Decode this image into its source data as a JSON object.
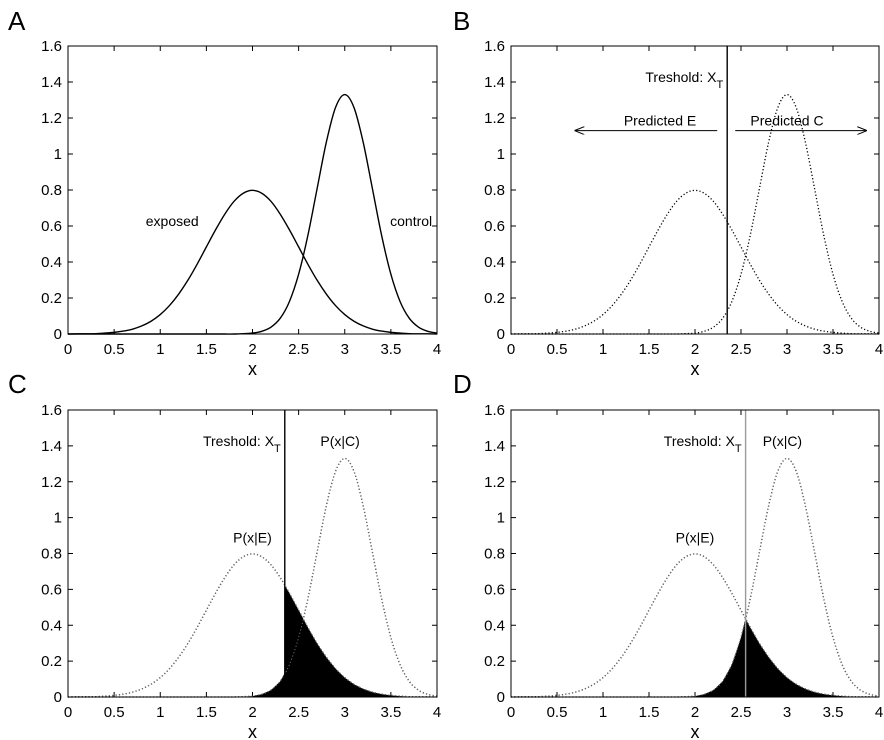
{
  "chart_data": [
    {
      "type": "line",
      "panel": "A",
      "xlabel": "x",
      "line_style": "solid",
      "x": [
        0,
        0.1,
        0.2,
        0.3,
        0.4,
        0.5,
        0.6,
        0.7,
        0.8,
        0.9,
        1,
        1.1,
        1.2,
        1.3,
        1.4,
        1.5,
        1.6,
        1.7,
        1.8,
        1.9,
        2,
        2.1,
        2.2,
        2.3,
        2.4,
        2.5,
        2.6,
        2.7,
        2.8,
        2.9,
        3,
        3.1,
        3.2,
        3.3,
        3.4,
        3.5,
        3.6,
        3.7,
        3.8,
        3.9,
        4
      ],
      "series": [
        {
          "name": "exposed",
          "color": "#000000",
          "values": [
            0,
            0.001,
            0.001,
            0.002,
            0.005,
            0.009,
            0.016,
            0.027,
            0.045,
            0.071,
            0.108,
            0.158,
            0.222,
            0.299,
            0.388,
            0.484,
            0.579,
            0.666,
            0.737,
            0.782,
            0.798,
            0.782,
            0.737,
            0.666,
            0.579,
            0.484,
            0.388,
            0.299,
            0.222,
            0.158,
            0.108,
            0.071,
            0.045,
            0.027,
            0.016,
            0.009,
            0.005,
            0.002,
            0.001,
            0.001,
            0
          ]
        },
        {
          "name": "control",
          "color": "#000000",
          "values": [
            0,
            0,
            0,
            0,
            0,
            0,
            0,
            0,
            0,
            0,
            0,
            0,
            0,
            0,
            0,
            0,
            0,
            0,
            0,
            0.002,
            0.005,
            0.015,
            0.038,
            0.087,
            0.18,
            0.332,
            0.547,
            0.807,
            1.065,
            1.258,
            1.33,
            1.258,
            1.065,
            0.807,
            0.547,
            0.332,
            0.18,
            0.087,
            0.038,
            0.015,
            0.005
          ]
        }
      ],
      "xlim": [
        0,
        4
      ],
      "ylim": [
        0,
        1.6
      ],
      "xticks": [
        0,
        0.5,
        1,
        1.5,
        2,
        2.5,
        3,
        3.5,
        4
      ],
      "yticks": [
        0,
        0.2,
        0.4,
        0.6,
        0.8,
        1,
        1.2,
        1.4,
        1.6
      ]
    },
    {
      "type": "line",
      "panel": "B",
      "xlabel": "x",
      "line_style": "dotted",
      "x": [
        0,
        0.1,
        0.2,
        0.3,
        0.4,
        0.5,
        0.6,
        0.7,
        0.8,
        0.9,
        1,
        1.1,
        1.2,
        1.3,
        1.4,
        1.5,
        1.6,
        1.7,
        1.8,
        1.9,
        2,
        2.1,
        2.2,
        2.3,
        2.4,
        2.5,
        2.6,
        2.7,
        2.8,
        2.9,
        3,
        3.1,
        3.2,
        3.3,
        3.4,
        3.5,
        3.6,
        3.7,
        3.8,
        3.9,
        4
      ],
      "series": [
        {
          "color": "#000000",
          "values": [
            0,
            0.001,
            0.001,
            0.002,
            0.005,
            0.009,
            0.016,
            0.027,
            0.045,
            0.071,
            0.108,
            0.158,
            0.222,
            0.299,
            0.388,
            0.484,
            0.579,
            0.666,
            0.737,
            0.782,
            0.798,
            0.782,
            0.737,
            0.666,
            0.579,
            0.484,
            0.388,
            0.299,
            0.222,
            0.158,
            0.108,
            0.071,
            0.045,
            0.027,
            0.016,
            0.009,
            0.005,
            0.002,
            0.001,
            0.001,
            0
          ]
        },
        {
          "color": "#000000",
          "values": [
            0,
            0,
            0,
            0,
            0,
            0,
            0,
            0,
            0,
            0,
            0,
            0,
            0,
            0,
            0,
            0,
            0,
            0,
            0,
            0.002,
            0.005,
            0.015,
            0.038,
            0.087,
            0.18,
            0.332,
            0.547,
            0.807,
            1.065,
            1.258,
            1.33,
            1.258,
            1.065,
            0.807,
            0.547,
            0.332,
            0.18,
            0.087,
            0.038,
            0.015,
            0.005
          ]
        }
      ],
      "threshold": 2.35,
      "threshold_color": "#000000",
      "threshold_label": "Treshold: X",
      "threshold_subscript": "T",
      "regions": [
        "Predicted E",
        "Predicted C"
      ],
      "xlim": [
        0,
        4
      ],
      "ylim": [
        0,
        1.6
      ],
      "xticks": [
        0,
        0.5,
        1,
        1.5,
        2,
        2.5,
        3,
        3.5,
        4
      ],
      "yticks": [
        0,
        0.2,
        0.4,
        0.6,
        0.8,
        1,
        1.2,
        1.4,
        1.6
      ]
    },
    {
      "type": "line",
      "panel": "C",
      "xlabel": "x",
      "line_style": "dotted",
      "shade_errors": true,
      "x": [
        0,
        0.1,
        0.2,
        0.3,
        0.4,
        0.5,
        0.6,
        0.7,
        0.8,
        0.9,
        1,
        1.1,
        1.2,
        1.3,
        1.4,
        1.5,
        1.6,
        1.7,
        1.8,
        1.9,
        2,
        2.1,
        2.2,
        2.3,
        2.4,
        2.5,
        2.6,
        2.7,
        2.8,
        2.9,
        3,
        3.1,
        3.2,
        3.3,
        3.4,
        3.5,
        3.6,
        3.7,
        3.8,
        3.9,
        4
      ],
      "series": [
        {
          "name": "P(x|E)",
          "color": "#000000",
          "values": [
            0,
            0.001,
            0.001,
            0.002,
            0.005,
            0.009,
            0.016,
            0.027,
            0.045,
            0.071,
            0.108,
            0.158,
            0.222,
            0.299,
            0.388,
            0.484,
            0.579,
            0.666,
            0.737,
            0.782,
            0.798,
            0.782,
            0.737,
            0.666,
            0.579,
            0.484,
            0.388,
            0.299,
            0.222,
            0.158,
            0.108,
            0.071,
            0.045,
            0.027,
            0.016,
            0.009,
            0.005,
            0.002,
            0.001,
            0.001,
            0
          ]
        },
        {
          "name": "P(x|C)",
          "color": "#000000",
          "values": [
            0,
            0,
            0,
            0,
            0,
            0,
            0,
            0,
            0,
            0,
            0,
            0,
            0,
            0,
            0,
            0,
            0,
            0,
            0,
            0.002,
            0.005,
            0.015,
            0.038,
            0.087,
            0.18,
            0.332,
            0.547,
            0.807,
            1.065,
            1.258,
            1.33,
            1.258,
            1.065,
            0.807,
            0.547,
            0.332,
            0.18,
            0.087,
            0.038,
            0.015,
            0.005
          ]
        }
      ],
      "threshold": 2.35,
      "threshold_color": "#000000",
      "threshold_label": "Treshold: X",
      "threshold_subscript": "T",
      "xlim": [
        0,
        4
      ],
      "ylim": [
        0,
        1.6
      ],
      "xticks": [
        0,
        0.5,
        1,
        1.5,
        2,
        2.5,
        3,
        3.5,
        4
      ],
      "yticks": [
        0,
        0.2,
        0.4,
        0.6,
        0.8,
        1,
        1.2,
        1.4,
        1.6
      ]
    },
    {
      "type": "line",
      "panel": "D",
      "xlabel": "x",
      "line_style": "dotted",
      "shade_errors": true,
      "x": [
        0,
        0.1,
        0.2,
        0.3,
        0.4,
        0.5,
        0.6,
        0.7,
        0.8,
        0.9,
        1,
        1.1,
        1.2,
        1.3,
        1.4,
        1.5,
        1.6,
        1.7,
        1.8,
        1.9,
        2,
        2.1,
        2.2,
        2.3,
        2.4,
        2.5,
        2.6,
        2.7,
        2.8,
        2.9,
        3,
        3.1,
        3.2,
        3.3,
        3.4,
        3.5,
        3.6,
        3.7,
        3.8,
        3.9,
        4
      ],
      "series": [
        {
          "name": "P(x|E)",
          "color": "#000000",
          "values": [
            0,
            0.001,
            0.001,
            0.002,
            0.005,
            0.009,
            0.016,
            0.027,
            0.045,
            0.071,
            0.108,
            0.158,
            0.222,
            0.299,
            0.388,
            0.484,
            0.579,
            0.666,
            0.737,
            0.782,
            0.798,
            0.782,
            0.737,
            0.666,
            0.579,
            0.484,
            0.388,
            0.299,
            0.222,
            0.158,
            0.108,
            0.071,
            0.045,
            0.027,
            0.016,
            0.009,
            0.005,
            0.002,
            0.001,
            0.001,
            0
          ]
        },
        {
          "name": "P(x|C)",
          "color": "#000000",
          "values": [
            0,
            0,
            0,
            0,
            0,
            0,
            0,
            0,
            0,
            0,
            0,
            0,
            0,
            0,
            0,
            0,
            0,
            0,
            0,
            0.002,
            0.005,
            0.015,
            0.038,
            0.087,
            0.18,
            0.332,
            0.547,
            0.807,
            1.065,
            1.258,
            1.33,
            1.258,
            1.065,
            0.807,
            0.547,
            0.332,
            0.18,
            0.087,
            0.038,
            0.015,
            0.005
          ]
        }
      ],
      "threshold": 2.55,
      "threshold_color": "#9a9a9a",
      "threshold_label": "Treshold: X",
      "threshold_subscript": "T",
      "xlim": [
        0,
        4
      ],
      "ylim": [
        0,
        1.6
      ],
      "xticks": [
        0,
        0.5,
        1,
        1.5,
        2,
        2.5,
        3,
        3.5,
        4
      ],
      "yticks": [
        0,
        0.2,
        0.4,
        0.6,
        0.8,
        1,
        1.2,
        1.4,
        1.6
      ]
    }
  ]
}
